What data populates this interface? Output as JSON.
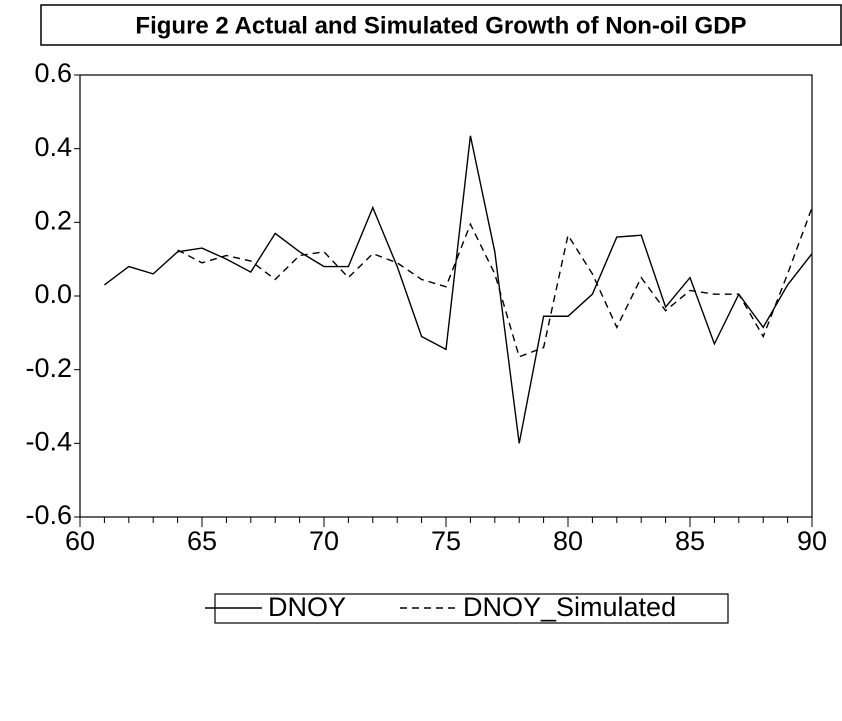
{
  "chart_data": {
    "type": "line",
    "title": "Figure 2 Actual and Simulated Growth of Non-oil GDP",
    "x": [
      61,
      62,
      63,
      64,
      65,
      66,
      67,
      68,
      69,
      70,
      71,
      72,
      73,
      74,
      75,
      76,
      77,
      78,
      79,
      80,
      81,
      82,
      83,
      84,
      85,
      86,
      87,
      88,
      89,
      90
    ],
    "series": [
      {
        "name": "DNOY",
        "color": "#000000",
        "dash": "solid",
        "values": [
          0.03,
          0.08,
          0.06,
          0.12,
          0.13,
          0.1,
          0.065,
          0.17,
          0.12,
          0.08,
          0.08,
          0.24,
          0.08,
          -0.11,
          -0.145,
          0.435,
          0.12,
          -0.4,
          -0.055,
          -0.055,
          0.005,
          0.16,
          0.165,
          -0.03,
          0.05,
          -0.13,
          0.005,
          -0.085,
          0.03,
          0.115
        ]
      },
      {
        "name": "DNOY_Simulated",
        "color": "#000000",
        "dash": "dashed",
        "values": [
          null,
          null,
          null,
          0.125,
          0.09,
          0.11,
          0.095,
          0.045,
          0.11,
          0.12,
          0.05,
          0.115,
          0.09,
          0.045,
          0.025,
          0.195,
          0.06,
          -0.165,
          -0.14,
          0.165,
          0.06,
          -0.085,
          0.05,
          -0.04,
          0.015,
          0.005,
          0.005,
          -0.11,
          0.06,
          0.24
        ]
      }
    ],
    "xlim": [
      60,
      90
    ],
    "xticks": [
      60,
      65,
      70,
      75,
      80,
      85,
      90
    ],
    "ylim": [
      -0.6,
      0.6
    ],
    "yticks": [
      0.6,
      0.4,
      0.2,
      {
        "value": 0,
        "label": "0.0"
      },
      -0.2,
      -0.4,
      -0.6
    ],
    "grid": false
  }
}
